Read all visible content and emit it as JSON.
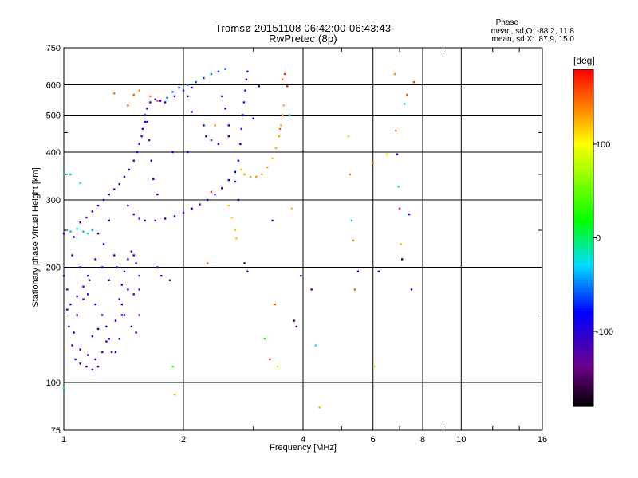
{
  "header": {
    "title_line1": "Tromsø 20151108 06:42:00-06:43:43",
    "title_line2": "RwPretec (8p)",
    "stats_title": "Phase",
    "stats_o": "mean, sd,O: -88.2, 11.8",
    "stats_x": "mean, sd,X:  87.9, 15.0"
  },
  "colorbar": {
    "unit": "[deg]",
    "min": -180,
    "max": 180,
    "ticks": [
      100,
      0,
      -100
    ],
    "tick_labels": [
      "100",
      "0",
      "-100"
    ]
  },
  "chart_data": {
    "type": "scatter",
    "title": "Tromsø 20151108 06:42:00-06:43:43",
    "subtitle": "RwPretec (8p)",
    "xlabel": "Frequency [MHz]",
    "ylabel": "Stationary phase Virtual Height [km]",
    "x_scale": "log",
    "y_scale": "log",
    "xlim": [
      1,
      16
    ],
    "ylim": [
      75,
      750
    ],
    "x_ticks": [
      1,
      2,
      4,
      6,
      8,
      10,
      16
    ],
    "x_tick_labels": [
      "1",
      "2",
      "4",
      "6",
      "8",
      "10",
      "16"
    ],
    "y_ticks": [
      75,
      100,
      200,
      300,
      400,
      500,
      600,
      750
    ],
    "y_tick_labels": [
      "75",
      "100",
      "200",
      "300",
      "400",
      "500",
      "600",
      "750"
    ],
    "grid": true,
    "color_variable": "Phase [deg]",
    "series": [
      {
        "points": [
          [
            1.0,
            190,
            -95
          ],
          [
            1.02,
            175,
            -98
          ],
          [
            1.04,
            160,
            -100
          ],
          [
            1.03,
            140,
            -102
          ],
          [
            1.05,
            125,
            -95
          ],
          [
            1.07,
            115,
            -100
          ],
          [
            1.1,
            112,
            -98
          ],
          [
            1.14,
            110,
            -96
          ],
          [
            1.18,
            108,
            -99
          ],
          [
            1.22,
            110,
            -100
          ],
          [
            1.08,
            150,
            -97
          ],
          [
            1.12,
            165,
            -101
          ],
          [
            1.15,
            170,
            -95
          ],
          [
            1.2,
            160,
            -98
          ],
          [
            1.25,
            150,
            -100
          ],
          [
            1.28,
            140,
            -97
          ],
          [
            1.3,
            130,
            -95
          ],
          [
            1.32,
            120,
            -102
          ],
          [
            1.35,
            145,
            -99
          ],
          [
            1.38,
            165,
            -100
          ],
          [
            1.4,
            180,
            -96
          ],
          [
            1.42,
            195,
            -98
          ],
          [
            1.45,
            210,
            -100
          ],
          [
            1.48,
            220,
            -95
          ],
          [
            1.5,
            215,
            -97
          ],
          [
            1.52,
            205,
            -101
          ],
          [
            1.55,
            190,
            -99
          ],
          [
            1.45,
            175,
            -100
          ],
          [
            1.4,
            160,
            -98
          ],
          [
            1.42,
            150,
            -96
          ],
          [
            1.48,
            140,
            -100
          ],
          [
            1.52,
            135,
            -97
          ],
          [
            1.55,
            150,
            -99
          ],
          [
            1.35,
            120,
            -95
          ],
          [
            1.38,
            130,
            -98
          ],
          [
            1.3,
            185,
            -100
          ],
          [
            1.25,
            200,
            -96
          ],
          [
            1.2,
            210,
            -99
          ],
          [
            1.15,
            190,
            -97
          ],
          [
            1.1,
            200,
            -100
          ],
          [
            1.05,
            215,
            -98
          ],
          [
            1.0,
            245,
            -95
          ],
          [
            1.04,
            248,
            -40
          ],
          [
            1.08,
            252,
            -35
          ],
          [
            1.12,
            248,
            -38
          ],
          [
            1.15,
            245,
            -30
          ],
          [
            1.18,
            250,
            -42
          ],
          [
            1.06,
            240,
            -100
          ],
          [
            1.1,
            262,
            -97
          ],
          [
            1.14,
            270,
            -99
          ],
          [
            1.18,
            280,
            -100
          ],
          [
            1.22,
            290,
            -96
          ],
          [
            1.26,
            300,
            -98
          ],
          [
            1.3,
            310,
            -100
          ],
          [
            1.34,
            320,
            -97
          ],
          [
            1.38,
            330,
            -99
          ],
          [
            1.42,
            345,
            -95
          ],
          [
            1.46,
            360,
            -98
          ],
          [
            1.5,
            380,
            -100
          ],
          [
            1.53,
            400,
            -97
          ],
          [
            1.55,
            420,
            -99
          ],
          [
            1.57,
            440,
            -100
          ],
          [
            1.58,
            460,
            -96
          ],
          [
            1.6,
            480,
            -98
          ],
          [
            1.6,
            500,
            -100
          ],
          [
            1.62,
            520,
            -97
          ],
          [
            1.65,
            540,
            -95
          ],
          [
            1.7,
            550,
            -98
          ],
          [
            1.75,
            545,
            -100
          ],
          [
            1.82,
            555,
            -60
          ],
          [
            1.88,
            575,
            -55
          ],
          [
            1.95,
            590,
            -60
          ],
          [
            2.05,
            600,
            -58
          ],
          [
            2.15,
            610,
            -62
          ],
          [
            2.25,
            625,
            -60
          ],
          [
            2.35,
            640,
            -57
          ],
          [
            2.45,
            650,
            -60
          ],
          [
            2.55,
            660,
            -58
          ],
          [
            1.8,
            540,
            -100
          ],
          [
            1.9,
            560,
            -97
          ],
          [
            2.0,
            580,
            -99
          ],
          [
            2.1,
            590,
            -100
          ],
          [
            1.45,
            290,
            -100
          ],
          [
            1.5,
            275,
            -98
          ],
          [
            1.55,
            268,
            -96
          ],
          [
            1.6,
            265,
            -100
          ],
          [
            1.7,
            265,
            -97
          ],
          [
            1.8,
            268,
            -99
          ],
          [
            1.9,
            272,
            -100
          ],
          [
            2.0,
            278,
            -98
          ],
          [
            2.1,
            285,
            -96
          ],
          [
            2.2,
            292,
            -100
          ],
          [
            2.3,
            300,
            -97
          ],
          [
            2.4,
            310,
            -99
          ],
          [
            2.5,
            322,
            -100
          ],
          [
            2.6,
            338,
            -95
          ],
          [
            2.7,
            355,
            -80
          ],
          [
            2.75,
            380,
            -75
          ],
          [
            2.78,
            420,
            -78
          ],
          [
            2.8,
            460,
            -72
          ],
          [
            2.82,
            500,
            -76
          ],
          [
            2.84,
            540,
            -74
          ],
          [
            2.86,
            580,
            -70
          ],
          [
            2.88,
            620,
            -75
          ],
          [
            2.9,
            650,
            -72
          ],
          [
            1.62,
            480,
            -100
          ],
          [
            1.64,
            430,
            -98
          ],
          [
            1.66,
            380,
            -95
          ],
          [
            1.68,
            340,
            -100
          ],
          [
            1.72,
            310,
            -98
          ],
          [
            2.25,
            470,
            -100
          ],
          [
            2.28,
            440,
            -97
          ],
          [
            2.35,
            430,
            -99
          ],
          [
            2.45,
            420,
            -100
          ],
          [
            2.6,
            440,
            -98
          ],
          [
            2.8,
            360,
            125
          ],
          [
            2.85,
            350,
            130
          ],
          [
            2.95,
            345,
            128
          ],
          [
            3.05,
            345,
            132
          ],
          [
            3.15,
            350,
            127
          ],
          [
            3.25,
            365,
            130
          ],
          [
            3.35,
            385,
            125
          ],
          [
            3.42,
            410,
            128
          ],
          [
            3.48,
            440,
            130
          ],
          [
            3.52,
            470,
            126
          ],
          [
            3.55,
            500,
            129
          ],
          [
            3.57,
            530,
            127
          ],
          [
            2.6,
            290,
            120
          ],
          [
            2.65,
            270,
            122
          ],
          [
            2.7,
            250,
            118
          ],
          [
            2.72,
            238,
            121
          ],
          [
            1.72,
            200,
            -97
          ],
          [
            1.76,
            190,
            -100
          ],
          [
            1.3,
            265,
            -98
          ],
          [
            1.22,
            245,
            -100
          ],
          [
            1.26,
            230,
            -96
          ],
          [
            1.34,
            215,
            -99
          ],
          [
            1.36,
            200,
            -100
          ],
          [
            1.16,
            185,
            -97
          ],
          [
            1.12,
            178,
            -99
          ],
          [
            1.08,
            168,
            -100
          ],
          [
            1.02,
            155,
            -96
          ],
          [
            1.06,
            135,
            -98
          ],
          [
            1.1,
            122,
            -100
          ],
          [
            1.15,
            118,
            -97
          ],
          [
            1.2,
            115,
            -99
          ],
          [
            1.25,
            120,
            -100
          ],
          [
            1.28,
            128,
            -96
          ],
          [
            1.4,
            150,
            -98
          ],
          [
            1.18,
            132,
            -100
          ],
          [
            1.22,
            138,
            -97
          ],
          [
            1.5,
            170,
            -99
          ],
          [
            1.55,
            175,
            -100
          ]
        ]
      },
      {
        "points": [
          [
            1.0,
            350,
            -10
          ],
          [
            1.04,
            350,
            -15
          ],
          [
            1.1,
            332,
            -20
          ],
          [
            1.0,
            97,
            -20
          ],
          [
            1.34,
            570,
            145
          ],
          [
            1.45,
            530,
            150
          ],
          [
            1.5,
            565,
            150
          ],
          [
            1.55,
            580,
            140
          ],
          [
            1.65,
            560,
            150
          ],
          [
            1.72,
            545,
            155
          ],
          [
            1.85,
            185,
            -140
          ],
          [
            1.88,
            110,
            40
          ],
          [
            1.9,
            93,
            120
          ],
          [
            1.88,
            400,
            -80
          ],
          [
            2.05,
            560,
            -95
          ],
          [
            2.05,
            400,
            -100
          ],
          [
            2.1,
            510,
            -98
          ],
          [
            2.3,
            205,
            150
          ],
          [
            2.35,
            315,
            170
          ],
          [
            2.4,
            470,
            140
          ],
          [
            2.5,
            560,
            -110
          ],
          [
            2.55,
            520,
            -95
          ],
          [
            2.6,
            470,
            -80
          ],
          [
            2.7,
            335,
            -110
          ],
          [
            2.75,
            300,
            -100
          ],
          [
            2.85,
            205,
            -160
          ],
          [
            2.9,
            195,
            -100
          ],
          [
            3.0,
            490,
            -90
          ],
          [
            3.1,
            595,
            -100
          ],
          [
            3.2,
            130,
            30
          ],
          [
            3.3,
            115,
            170
          ],
          [
            3.35,
            265,
            -100
          ],
          [
            3.4,
            160,
            150
          ],
          [
            3.45,
            110,
            90
          ],
          [
            3.5,
            460,
            150
          ],
          [
            3.55,
            620,
            150
          ],
          [
            3.6,
            640,
            170
          ],
          [
            3.65,
            595,
            175
          ],
          [
            3.7,
            500,
            -10
          ],
          [
            3.75,
            285,
            125
          ],
          [
            3.8,
            145,
            -155
          ],
          [
            3.85,
            140,
            -120
          ],
          [
            3.95,
            190,
            -105
          ],
          [
            4.2,
            175,
            -85
          ],
          [
            4.3,
            125,
            -30
          ],
          [
            4.4,
            86,
            50
          ],
          [
            5.2,
            440,
            115
          ],
          [
            5.25,
            350,
            140
          ],
          [
            5.3,
            265,
            -15
          ],
          [
            5.35,
            235,
            140
          ],
          [
            5.4,
            175,
            155
          ],
          [
            5.5,
            195,
            -85
          ],
          [
            6.0,
            375,
            140
          ],
          [
            6.05,
            110,
            105
          ],
          [
            6.2,
            195,
            -110
          ],
          [
            6.5,
            395,
            90
          ],
          [
            6.8,
            640,
            130
          ],
          [
            6.85,
            455,
            150
          ],
          [
            6.9,
            395,
            -100
          ],
          [
            6.95,
            325,
            -15
          ],
          [
            7.0,
            285,
            170
          ],
          [
            7.05,
            230,
            125
          ],
          [
            7.1,
            210,
            -160
          ],
          [
            7.2,
            535,
            -5
          ],
          [
            7.3,
            565,
            150
          ],
          [
            7.4,
            275,
            -90
          ],
          [
            7.5,
            175,
            -80
          ],
          [
            7.6,
            610,
            160
          ]
        ]
      }
    ]
  }
}
